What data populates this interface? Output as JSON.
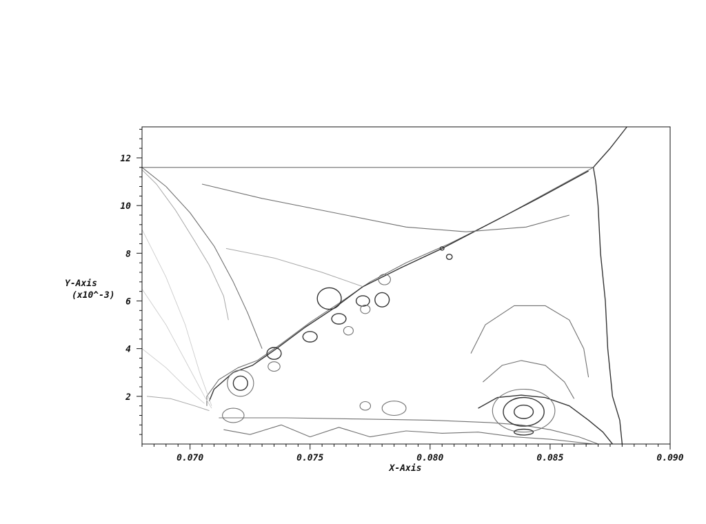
{
  "chart_data": {
    "type": "contour",
    "title": "",
    "xlabel": "X-Axis",
    "ylabel": "Y-Axis",
    "ylabel_scale": "(x10^-3)",
    "xlim": [
      0.068,
      0.09
    ],
    "ylim": [
      0,
      13.3
    ],
    "xticks": [
      0.07,
      0.075,
      0.08,
      0.085,
      0.09
    ],
    "xtick_labels": [
      "0.070",
      "0.075",
      "0.080",
      "0.085",
      "0.090"
    ],
    "yticks": [
      2,
      4,
      6,
      8,
      10,
      12
    ],
    "ytick_labels": [
      "2",
      "4",
      "6",
      "8",
      "10",
      "12"
    ],
    "grid": false,
    "legend": "none",
    "colors": {
      "dark": "#333333",
      "mid": "#6f6f6f",
      "light": "#a6a6a6",
      "faint": "#cccccc"
    },
    "series": [
      {
        "role": "horizontal-wall-line",
        "shade": "mid",
        "points": [
          [
            0.068,
            11.6
          ],
          [
            0.0868,
            11.6
          ]
        ]
      },
      {
        "role": "triple-point-upper-shock",
        "shade": "dark",
        "points": [
          [
            0.0868,
            11.6
          ],
          [
            0.0869,
            11.72
          ],
          [
            0.0875,
            12.4
          ],
          [
            0.0882,
            13.3
          ]
        ]
      },
      {
        "role": "main-shock-front",
        "shade": "dark",
        "points": [
          [
            0.0868,
            11.6
          ],
          [
            0.0869,
            11.0
          ],
          [
            0.087,
            10.0
          ],
          [
            0.0871,
            8.0
          ],
          [
            0.0873,
            6.0
          ],
          [
            0.0874,
            4.0
          ],
          [
            0.0876,
            2.0
          ],
          [
            0.0879,
            1.0
          ],
          [
            0.088,
            0.0
          ]
        ]
      },
      {
        "role": "oblique-shear-layer",
        "shade": "mid",
        "points": [
          [
            0.0868,
            11.6
          ],
          [
            0.0848,
            10.5
          ],
          [
            0.0828,
            9.4
          ],
          [
            0.0808,
            8.4
          ],
          [
            0.079,
            7.6
          ],
          [
            0.0775,
            6.8
          ],
          [
            0.0762,
            5.9
          ],
          [
            0.075,
            5.1
          ],
          [
            0.0738,
            4.2
          ],
          [
            0.0728,
            3.5
          ],
          [
            0.072,
            3.2
          ],
          [
            0.0712,
            2.7
          ],
          [
            0.0707,
            2.0
          ],
          [
            0.0707,
            1.6
          ]
        ]
      },
      {
        "role": "oblique-shear-layer-inner",
        "shade": "dark",
        "points": [
          [
            0.0866,
            11.45
          ],
          [
            0.0845,
            10.3
          ],
          [
            0.0824,
            9.2
          ],
          [
            0.0805,
            8.2
          ],
          [
            0.0788,
            7.4
          ],
          [
            0.0772,
            6.6
          ],
          [
            0.076,
            5.7
          ],
          [
            0.0748,
            4.9
          ],
          [
            0.0736,
            4.0
          ],
          [
            0.0726,
            3.3
          ],
          [
            0.0718,
            3.0
          ],
          [
            0.071,
            2.3
          ],
          [
            0.0708,
            1.8
          ]
        ]
      },
      {
        "role": "reflected-wave",
        "shade": "mid",
        "points": [
          [
            0.068,
            11.6
          ],
          [
            0.069,
            10.8
          ],
          [
            0.07,
            9.7
          ],
          [
            0.071,
            8.3
          ],
          [
            0.0718,
            6.8
          ],
          [
            0.0724,
            5.5
          ],
          [
            0.073,
            4.0
          ]
        ]
      },
      {
        "role": "reflected-wave-outer",
        "shade": "light",
        "points": [
          [
            0.068,
            11.5
          ],
          [
            0.0686,
            10.9
          ],
          [
            0.0694,
            9.8
          ],
          [
            0.0702,
            8.5
          ],
          [
            0.0708,
            7.5
          ],
          [
            0.0714,
            6.2
          ],
          [
            0.0716,
            5.2
          ]
        ]
      },
      {
        "role": "upper-region-contour",
        "shade": "mid",
        "points": [
          [
            0.0705,
            10.9
          ],
          [
            0.073,
            10.3
          ],
          [
            0.076,
            9.7
          ],
          [
            0.079,
            9.1
          ],
          [
            0.0815,
            8.9
          ],
          [
            0.084,
            9.1
          ],
          [
            0.0858,
            9.6
          ]
        ]
      },
      {
        "role": "upper-region-contour-2",
        "shade": "light",
        "points": [
          [
            0.0715,
            8.2
          ],
          [
            0.0735,
            7.8
          ],
          [
            0.0755,
            7.2
          ],
          [
            0.0772,
            6.6
          ]
        ]
      },
      {
        "role": "bottom-wall-shear",
        "shade": "mid",
        "points": [
          [
            0.0712,
            1.1
          ],
          [
            0.074,
            1.1
          ],
          [
            0.077,
            1.05
          ],
          [
            0.08,
            1.0
          ],
          [
            0.0825,
            0.9
          ],
          [
            0.0838,
            0.8
          ],
          [
            0.085,
            0.6
          ],
          [
            0.0862,
            0.3
          ],
          [
            0.087,
            0.0
          ]
        ]
      },
      {
        "role": "bottom-wall-shear-lower",
        "shade": "mid",
        "points": [
          [
            0.0714,
            0.6
          ],
          [
            0.0725,
            0.4
          ],
          [
            0.0738,
            0.8
          ],
          [
            0.075,
            0.3
          ],
          [
            0.0762,
            0.7
          ],
          [
            0.0775,
            0.3
          ],
          [
            0.079,
            0.55
          ],
          [
            0.0805,
            0.45
          ],
          [
            0.082,
            0.5
          ],
          [
            0.0835,
            0.3
          ],
          [
            0.085,
            0.2
          ],
          [
            0.0868,
            0.0
          ]
        ]
      },
      {
        "role": "separation-bubble-upper",
        "shade": "dark",
        "points": [
          [
            0.082,
            1.5
          ],
          [
            0.0828,
            1.95
          ],
          [
            0.0838,
            2.05
          ],
          [
            0.0848,
            1.95
          ],
          [
            0.0858,
            1.6
          ],
          [
            0.0866,
            1.0
          ],
          [
            0.0872,
            0.5
          ],
          [
            0.0876,
            0.0
          ]
        ]
      },
      {
        "role": "bubble-outer-loop",
        "shade": "mid",
        "points": [
          [
            0.0822,
            2.6
          ],
          [
            0.083,
            3.3
          ],
          [
            0.0838,
            3.5
          ],
          [
            0.0848,
            3.3
          ],
          [
            0.0856,
            2.6
          ],
          [
            0.086,
            1.9
          ]
        ]
      },
      {
        "role": "bubble-outer-loop-2",
        "shade": "mid",
        "points": [
          [
            0.0817,
            3.8
          ],
          [
            0.0823,
            5.0
          ],
          [
            0.0835,
            5.8
          ],
          [
            0.0848,
            5.8
          ],
          [
            0.0858,
            5.2
          ],
          [
            0.0864,
            4.0
          ],
          [
            0.0866,
            2.8
          ]
        ]
      },
      {
        "role": "expansion-fan-1",
        "shade": "faint",
        "points": [
          [
            0.068,
            9.0
          ],
          [
            0.069,
            7.0
          ],
          [
            0.0698,
            5.0
          ],
          [
            0.0704,
            3.0
          ],
          [
            0.0709,
            1.6
          ]
        ]
      },
      {
        "role": "expansion-fan-2",
        "shade": "faint",
        "points": [
          [
            0.068,
            6.5
          ],
          [
            0.069,
            5.0
          ],
          [
            0.0698,
            3.5
          ],
          [
            0.0706,
            2.0
          ],
          [
            0.0709,
            1.5
          ]
        ]
      },
      {
        "role": "expansion-fan-3",
        "shade": "faint",
        "points": [
          [
            0.068,
            4.0
          ],
          [
            0.069,
            3.2
          ],
          [
            0.0698,
            2.4
          ],
          [
            0.0706,
            1.7
          ]
        ]
      },
      {
        "role": "expansion-fan-4",
        "shade": "light",
        "points": [
          [
            0.0682,
            2.0
          ],
          [
            0.0692,
            1.9
          ],
          [
            0.0702,
            1.6
          ],
          [
            0.0708,
            1.4
          ]
        ]
      }
    ],
    "loops": [
      {
        "role": "bubble-ring-1",
        "shade": "dark",
        "center": [
          0.0839,
          1.35
        ],
        "rx": 0.0004,
        "ry": 0.28
      },
      {
        "role": "bubble-ring-2",
        "shade": "dark",
        "center": [
          0.0839,
          1.35
        ],
        "rx": 0.00085,
        "ry": 0.6
      },
      {
        "role": "bubble-ring-3",
        "shade": "mid",
        "center": [
          0.0839,
          1.4
        ],
        "rx": 0.0013,
        "ry": 0.9
      },
      {
        "role": "bubble-ring-4",
        "shade": "dark",
        "center": [
          0.0839,
          0.5
        ],
        "rx": 0.0004,
        "ry": 0.12
      },
      {
        "role": "vortex-1",
        "shade": "dark",
        "center": [
          0.0721,
          2.55
        ],
        "rx": 0.0003,
        "ry": 0.3
      },
      {
        "role": "vortex-1-outer",
        "shade": "mid",
        "center": [
          0.0721,
          2.55
        ],
        "rx": 0.00055,
        "ry": 0.55
      },
      {
        "role": "vortex-2",
        "shade": "dark",
        "center": [
          0.0735,
          3.8
        ],
        "rx": 0.0003,
        "ry": 0.25
      },
      {
        "role": "vortex-3",
        "shade": "dark",
        "center": [
          0.075,
          4.5
        ],
        "rx": 0.0003,
        "ry": 0.22
      },
      {
        "role": "vortex-4",
        "shade": "dark",
        "center": [
          0.0762,
          5.25
        ],
        "rx": 0.0003,
        "ry": 0.22
      },
      {
        "role": "vortex-5",
        "shade": "dark",
        "center": [
          0.0772,
          6.0
        ],
        "rx": 0.00028,
        "ry": 0.22
      },
      {
        "role": "vortex-6",
        "shade": "mid",
        "center": [
          0.0781,
          6.9
        ],
        "rx": 0.00025,
        "ry": 0.22
      },
      {
        "role": "small-loop-1",
        "shade": "dark",
        "center": [
          0.0758,
          6.1
        ],
        "rx": 0.0005,
        "ry": 0.45
      },
      {
        "role": "small-loop-2",
        "shade": "dark",
        "center": [
          0.078,
          6.05
        ],
        "rx": 0.0003,
        "ry": 0.3
      },
      {
        "role": "small-loop-3",
        "shade": "mid",
        "center": [
          0.0766,
          4.75
        ],
        "rx": 0.0002,
        "ry": 0.18
      },
      {
        "role": "small-loop-4",
        "shade": "mid",
        "center": [
          0.0773,
          5.65
        ],
        "rx": 0.0002,
        "ry": 0.18
      },
      {
        "role": "small-loop-5",
        "shade": "mid",
        "center": [
          0.0718,
          1.2
        ],
        "rx": 0.00045,
        "ry": 0.3
      },
      {
        "role": "small-loop-6",
        "shade": "mid",
        "center": [
          0.0735,
          3.25
        ],
        "rx": 0.00025,
        "ry": 0.2
      },
      {
        "role": "small-loop-7",
        "shade": "mid",
        "center": [
          0.0785,
          1.5
        ],
        "rx": 0.0005,
        "ry": 0.3
      },
      {
        "role": "small-loop-8",
        "shade": "mid",
        "center": [
          0.0773,
          1.6
        ],
        "rx": 0.00022,
        "ry": 0.18
      },
      {
        "role": "small-loop-9",
        "shade": "dark",
        "center": [
          0.0808,
          7.85
        ],
        "rx": 0.00012,
        "ry": 0.11
      },
      {
        "role": "small-loop-10",
        "shade": "dark",
        "center": [
          0.0805,
          8.2
        ],
        "rx": 8e-05,
        "ry": 0.07
      }
    ]
  }
}
